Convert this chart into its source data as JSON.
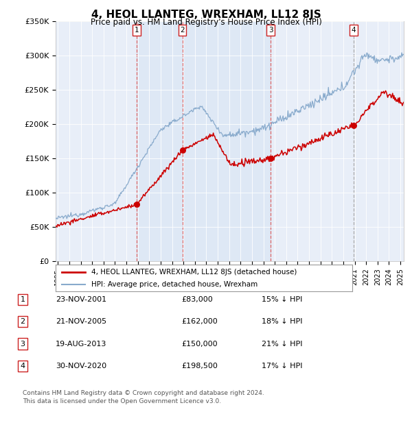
{
  "title": "4, HEOL LLANTEG, WREXHAM, LL12 8JS",
  "subtitle": "Price paid vs. HM Land Registry's House Price Index (HPI)",
  "legend_line1": "4, HEOL LLANTEG, WREXHAM, LL12 8JS (detached house)",
  "legend_line2": "HPI: Average price, detached house, Wrexham",
  "footer1": "Contains HM Land Registry data © Crown copyright and database right 2024.",
  "footer2": "This data is licensed under the Open Government Licence v3.0.",
  "sales": [
    {
      "num": 1,
      "date": "23-NOV-2001",
      "price": 83000,
      "hpi_diff": "15% ↓ HPI",
      "date_dec": 2001.9
    },
    {
      "num": 2,
      "date": "21-NOV-2005",
      "price": 162000,
      "hpi_diff": "18% ↓ HPI",
      "date_dec": 2005.9
    },
    {
      "num": 3,
      "date": "19-AUG-2013",
      "price": 150000,
      "hpi_diff": "21% ↓ HPI",
      "date_dec": 2013.63
    },
    {
      "num": 4,
      "date": "30-NOV-2020",
      "price": 198500,
      "hpi_diff": "17% ↓ HPI",
      "date_dec": 2020.92
    }
  ],
  "red_line_color": "#cc0000",
  "blue_line_color": "#88aacc",
  "sale_marker_color": "#cc0000",
  "vline_color_red": "#dd4444",
  "vline_color_grey": "#aaaaaa",
  "shade_color": "#ddeeff",
  "ylim": [
    0,
    350000
  ],
  "xlim_start": 1994.8,
  "xlim_end": 2025.3,
  "yticks": [
    0,
    50000,
    100000,
    150000,
    200000,
    250000,
    300000,
    350000
  ],
  "ytick_labels": [
    "£0",
    "£50K",
    "£100K",
    "£150K",
    "£200K",
    "£250K",
    "£300K",
    "£350K"
  ],
  "xticks": [
    1995,
    1996,
    1997,
    1998,
    1999,
    2000,
    2001,
    2002,
    2003,
    2004,
    2005,
    2006,
    2007,
    2008,
    2009,
    2010,
    2011,
    2012,
    2013,
    2014,
    2015,
    2016,
    2017,
    2018,
    2019,
    2020,
    2021,
    2022,
    2023,
    2024,
    2025
  ]
}
